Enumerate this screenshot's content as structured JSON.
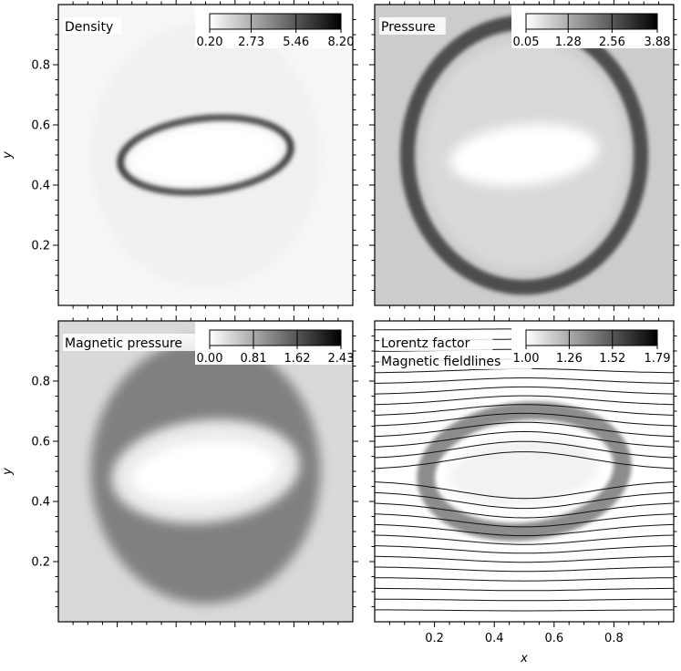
{
  "chart_data": [
    {
      "type": "heatmap",
      "title": "Density",
      "xlim": [
        0.0,
        1.0
      ],
      "ylim": [
        0.0,
        1.0
      ],
      "xticks": [],
      "yticks": [
        "0.2",
        "0.4",
        "0.6",
        "0.8"
      ],
      "xlabel": "",
      "ylabel": "y",
      "background_level": 0.03,
      "colorbar": {
        "ticks": [
          "0.20",
          "2.73",
          "5.46",
          "8.20"
        ],
        "min": 0.2,
        "max": 8.2
      },
      "structures": [
        {
          "kind": "ellipse-blob",
          "cx": 0.5,
          "cy": 0.5,
          "rx": 0.39,
          "ry": 0.44,
          "level": 0.06
        },
        {
          "kind": "ellipse-ring",
          "cx": 0.5,
          "cy": 0.5,
          "rx": 0.29,
          "ry": 0.12,
          "rotation": -6,
          "width": 0.025,
          "level": 0.75
        },
        {
          "kind": "ellipse-blob",
          "cx": 0.5,
          "cy": 0.5,
          "rx": 0.26,
          "ry": 0.1,
          "rotation": -6,
          "level": 0.0
        }
      ]
    },
    {
      "type": "heatmap",
      "title": "Pressure",
      "xlim": [
        0.0,
        1.0
      ],
      "ylim": [
        0.0,
        1.0
      ],
      "xticks": [],
      "yticks": [],
      "xlabel": "",
      "ylabel": "",
      "background_level": 0.2,
      "colorbar": {
        "ticks": [
          "0.05",
          "1.28",
          "2.56",
          "3.88"
        ],
        "min": 0.05,
        "max": 3.88
      },
      "structures": [
        {
          "kind": "ellipse-ring",
          "cx": 0.5,
          "cy": 0.5,
          "rx": 0.39,
          "ry": 0.44,
          "width": 0.05,
          "level": 0.7
        },
        {
          "kind": "ellipse-blob",
          "cx": 0.5,
          "cy": 0.5,
          "rx": 0.34,
          "ry": 0.38,
          "level": 0.15
        },
        {
          "kind": "ellipse-blob",
          "cx": 0.5,
          "cy": 0.5,
          "rx": 0.25,
          "ry": 0.1,
          "rotation": -6,
          "level": 0.0
        }
      ]
    },
    {
      "type": "heatmap",
      "title": "Magnetic pressure",
      "xlim": [
        0.0,
        1.0
      ],
      "ylim": [
        0.0,
        1.0
      ],
      "xticks": [],
      "yticks": [
        "0.2",
        "0.4",
        "0.6",
        "0.8"
      ],
      "xlabel": "",
      "ylabel": "y",
      "background_level": 0.15,
      "colorbar": {
        "ticks": [
          "0.00",
          "0.81",
          "1.62",
          "2.43"
        ],
        "min": 0.0,
        "max": 2.43
      },
      "structures": [
        {
          "kind": "ellipse-blob",
          "cx": 0.5,
          "cy": 0.5,
          "rx": 0.39,
          "ry": 0.44,
          "level": 0.5
        },
        {
          "kind": "ellipse-blob",
          "cx": 0.5,
          "cy": 0.5,
          "rx": 0.32,
          "ry": 0.17,
          "rotation": -6,
          "level": 0.08
        },
        {
          "kind": "ellipse-blob",
          "cx": 0.5,
          "cy": 0.5,
          "rx": 0.25,
          "ry": 0.1,
          "rotation": -6,
          "level": 0.0
        }
      ]
    },
    {
      "type": "heatmap",
      "title": "Lorentz factor",
      "subtitle": "Magnetic fieldlines",
      "xlim": [
        0.0,
        1.0
      ],
      "ylim": [
        0.0,
        1.0
      ],
      "xticks": [
        "0.2",
        "0.4",
        "0.6",
        "0.8"
      ],
      "yticks": [],
      "xlabel": "x",
      "ylabel": "",
      "background_level": 0.0,
      "colorbar": {
        "ticks": [
          "1.00",
          "1.26",
          "1.52",
          "1.79"
        ],
        "min": 1.0,
        "max": 1.79
      },
      "structures": [
        {
          "kind": "ellipse-ring",
          "cx": 0.5,
          "cy": 0.5,
          "rx": 0.33,
          "ry": 0.2,
          "rotation": -6,
          "width": 0.06,
          "level": 0.45
        },
        {
          "kind": "ellipse-blob",
          "cx": 0.5,
          "cy": 0.5,
          "rx": 0.25,
          "ry": 0.11,
          "rotation": -6,
          "level": 0.05
        }
      ],
      "fieldlines": {
        "count": 27,
        "ymin": 0.04,
        "ymax": 0.97,
        "amplitude": 0.06,
        "cx": 0.5,
        "cy": 0.5,
        "rx": 0.34,
        "ry": 0.3
      }
    }
  ],
  "shared": {
    "xticks": [
      "0.2",
      "0.4",
      "0.6",
      "0.8"
    ],
    "xlabel": "x",
    "colormap": "gray_r"
  }
}
